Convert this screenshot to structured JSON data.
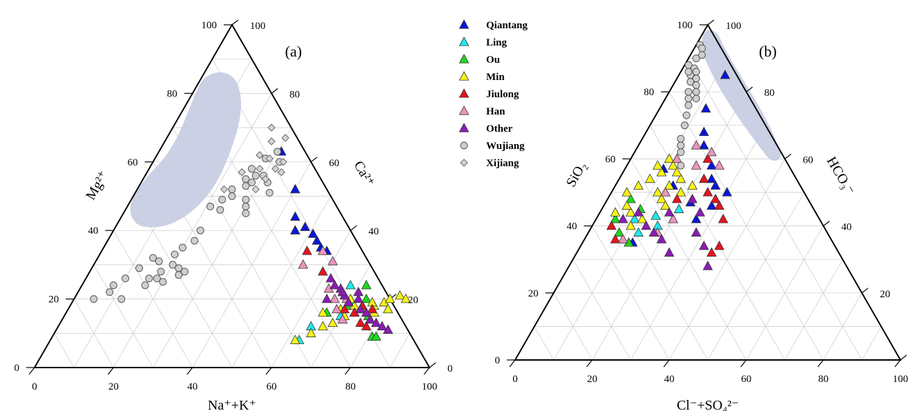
{
  "chart_data": [
    {
      "type": "scatter",
      "subtype": "ternary",
      "panel_label": "(a)",
      "axes": {
        "bottom": {
          "label_html": "Na⁺+K⁺",
          "range": [
            0,
            100
          ]
        },
        "left": {
          "label_html": "Mg²⁺",
          "range": [
            0,
            100
          ]
        },
        "right": {
          "label_html": "Ca²⁺",
          "range": [
            0,
            100
          ]
        }
      },
      "bottom_ticks": [
        "0",
        "20",
        "40",
        "60",
        "80",
        "100"
      ],
      "left_ticks": [
        "0",
        "20",
        "40",
        "60",
        "80",
        "100"
      ],
      "right_ticks": [
        "100",
        "80",
        "60",
        "40",
        "20",
        "0"
      ],
      "grid": true,
      "note": "Point values are approximate positions (percent) estimated from the chart.",
      "series": [
        {
          "name": "Qiantang",
          "points": [
            [
              31,
              63
            ],
            [
              40,
              52
            ],
            [
              44,
              44
            ],
            [
              46,
              40
            ],
            [
              48,
              41
            ],
            [
              51,
              39
            ],
            [
              53,
              37
            ],
            [
              55,
              35
            ],
            [
              57,
              34
            ]
          ]
        },
        {
          "name": "Ling",
          "points": [
            [
              68,
              24
            ],
            [
              67,
              22
            ],
            [
              71,
              19
            ],
            [
              70,
              15
            ],
            [
              64,
              12
            ],
            [
              63,
              8
            ]
          ]
        },
        {
          "name": "Ou",
          "points": [
            [
              72,
              24
            ],
            [
              74,
              20
            ],
            [
              77,
              15
            ],
            [
              81,
              9
            ],
            [
              82,
              9
            ],
            [
              66,
              16
            ],
            [
              70,
              18
            ]
          ]
        },
        {
          "name": "Min",
          "points": [
            [
              62,
              8
            ],
            [
              65,
              10
            ],
            [
              67,
              12
            ],
            [
              69,
              13
            ],
            [
              71,
              15
            ],
            [
              73,
              16
            ],
            [
              75,
              17
            ],
            [
              77,
              18
            ],
            [
              79,
              19
            ],
            [
              80,
              20
            ],
            [
              82,
              21
            ],
            [
              84,
              20
            ],
            [
              65,
              16
            ],
            [
              69,
              17
            ],
            [
              72,
              18
            ],
            [
              76,
              19
            ],
            [
              78,
              16
            ],
            [
              81,
              17
            ],
            [
              70,
              20
            ]
          ]
        },
        {
          "name": "Jiulong",
          "points": [
            [
              52,
              34
            ],
            [
              59,
              28
            ],
            [
              70,
              17
            ],
            [
              73,
              16
            ],
            [
              76,
              13
            ],
            [
              78,
              12
            ],
            [
              74,
              18
            ],
            [
              77,
              17
            ]
          ]
        },
        {
          "name": "Han",
          "points": [
            [
              53,
              30
            ],
            [
              56,
              34
            ],
            [
              60,
              31
            ],
            [
              63,
              23
            ],
            [
              66,
              20
            ],
            [
              68,
              17
            ],
            [
              71,
              14
            ],
            [
              69,
              20
            ]
          ]
        },
        {
          "name": "Other",
          "points": [
            [
              62,
              26
            ],
            [
              64,
              24
            ],
            [
              66,
              23
            ],
            [
              68,
              21
            ],
            [
              70,
              19
            ],
            [
              72,
              20
            ],
            [
              74,
              17
            ],
            [
              76,
              16
            ],
            [
              78,
              14
            ],
            [
              80,
              13
            ],
            [
              82,
              12
            ],
            [
              84,
              11
            ],
            [
              64,
              20
            ],
            [
              67,
              22
            ],
            [
              71,
              22
            ]
          ]
        },
        {
          "name": "Wujiang",
          "points": [
            [
              31,
              45
            ],
            [
              30,
              47
            ],
            [
              29,
              49
            ],
            [
              28,
              54
            ],
            [
              28,
              56
            ],
            [
              30,
              56
            ],
            [
              32,
              54
            ],
            [
              34,
              51
            ],
            [
              26,
              58
            ],
            [
              28,
              61
            ],
            [
              30,
              63
            ],
            [
              32,
              60
            ],
            [
              26,
              55
            ],
            [
              24,
              46
            ],
            [
              22,
              40
            ],
            [
              22,
              37
            ],
            [
              20,
              35
            ],
            [
              19,
              33
            ],
            [
              20,
              30
            ],
            [
              18,
              28
            ],
            [
              16,
              26
            ],
            [
              16,
              24
            ],
            [
              12,
              29
            ],
            [
              10,
              26
            ],
            [
              12,
              20
            ],
            [
              8,
              22
            ],
            [
              8,
              24
            ],
            [
              5,
              20
            ],
            [
              24,
              52
            ],
            [
              25,
              50
            ],
            [
              27,
              53
            ],
            [
              23,
              49
            ],
            [
              21,
              47
            ],
            [
              14,
              32
            ],
            [
              16,
              31
            ],
            [
              18,
              26
            ],
            [
              20,
              25
            ],
            [
              22,
              29
            ],
            [
              24,
              28
            ],
            [
              23,
              27
            ]
          ]
        },
        {
          "name": "Xijiang",
          "points": [
            [
              25,
              70
            ],
            [
              27,
              66
            ],
            [
              30,
              67
            ],
            [
              32,
              58
            ],
            [
              34,
              57
            ],
            [
              29,
              61
            ],
            [
              26,
              62
            ],
            [
              28,
              58
            ],
            [
              30,
              52
            ],
            [
              31,
              55
            ],
            [
              33,
              60
            ],
            [
              24,
              57
            ],
            [
              22,
              52
            ]
          ]
        }
      ]
    },
    {
      "type": "scatter",
      "subtype": "ternary",
      "panel_label": "(b)",
      "axes": {
        "bottom": {
          "label_html": "Cl⁻+SO₄²⁻",
          "range": [
            0,
            100
          ]
        },
        "left": {
          "label_html": "SiO₂",
          "range": [
            0,
            100
          ]
        },
        "right": {
          "label_html": "HCO₃⁻",
          "range": [
            0,
            100
          ]
        }
      },
      "bottom_ticks": [
        "0",
        "20",
        "40",
        "60",
        "80",
        "100"
      ],
      "left_ticks": [
        "0",
        "20",
        "40",
        "60",
        "80",
        "100"
      ],
      "right_ticks": [
        "100",
        "80",
        "60",
        "40",
        "20",
        "0"
      ],
      "right_end_label": "0",
      "grid": true,
      "note": "Point values are approximate positions (percent) estimated from the chart.",
      "series": [
        {
          "name": "Qiantang",
          "points": [
            [
              12,
              75
            ],
            [
              12,
              85
            ],
            [
              15,
              68
            ],
            [
              17,
              64
            ],
            [
              20,
              60
            ],
            [
              22,
              58
            ],
            [
              24,
              54
            ],
            [
              26,
              52
            ],
            [
              30,
              50
            ],
            [
              28,
              46
            ],
            [
              26,
              42
            ],
            [
              22,
              47
            ],
            [
              15,
              52
            ],
            [
              13,
              35
            ],
            [
              10,
              57
            ]
          ]
        },
        {
          "name": "Ling",
          "points": [
            [
              20,
              45
            ],
            [
              17,
              40
            ],
            [
              13,
              38
            ],
            [
              10,
              42
            ],
            [
              15,
              43
            ]
          ]
        },
        {
          "name": "Ou",
          "points": [
            [
              5,
              42
            ],
            [
              8,
              38
            ],
            [
              12,
              35
            ],
            [
              10,
              45
            ],
            [
              6,
              48
            ]
          ]
        },
        {
          "name": "Min",
          "points": [
            [
              4,
              50
            ],
            [
              6,
              52
            ],
            [
              8,
              54
            ],
            [
              10,
              56
            ],
            [
              12,
              50
            ],
            [
              14,
              48
            ],
            [
              16,
              46
            ],
            [
              8,
              44
            ],
            [
              10,
              40
            ],
            [
              12,
              42
            ],
            [
              6,
              46
            ],
            [
              4,
              44
            ],
            [
              14,
              52
            ],
            [
              16,
              54
            ],
            [
              18,
              50
            ],
            [
              20,
              52
            ],
            [
              8,
              58
            ],
            [
              10,
              60
            ],
            [
              12,
              58
            ],
            [
              14,
              56
            ]
          ]
        },
        {
          "name": "Jiulong",
          "points": [
            [
              5,
              40
            ],
            [
              8,
              36
            ],
            [
              20,
              60
            ],
            [
              25,
              50
            ],
            [
              28,
              48
            ],
            [
              33,
              42
            ],
            [
              36,
              34
            ],
            [
              35,
              32
            ],
            [
              30,
              46
            ],
            [
              18,
              48
            ],
            [
              22,
              54
            ]
          ]
        },
        {
          "name": "Han",
          "points": [
            [
              18,
              58
            ],
            [
              20,
              62
            ],
            [
              15,
              64
            ],
            [
              12,
              60
            ],
            [
              14,
              50
            ],
            [
              18,
              38
            ],
            [
              20,
              42
            ],
            [
              10,
              36
            ],
            [
              24,
              58
            ]
          ]
        },
        {
          "name": "Other",
          "points": [
            [
              7,
              42
            ],
            [
              10,
              44
            ],
            [
              14,
              40
            ],
            [
              17,
              38
            ],
            [
              20,
              36
            ],
            [
              24,
              32
            ],
            [
              28,
              38
            ],
            [
              32,
              34
            ],
            [
              36,
              28
            ],
            [
              26,
              44
            ],
            [
              22,
              48
            ],
            [
              18,
              44
            ]
          ]
        },
        {
          "name": "Wujiang",
          "points": [
            [
              1,
              94
            ],
            [
              2,
              90
            ],
            [
              3,
              87
            ],
            [
              3,
              85
            ],
            [
              4,
              83
            ],
            [
              5,
              80
            ],
            [
              6,
              78
            ],
            [
              7,
              76
            ],
            [
              8,
              73
            ],
            [
              9,
              70
            ],
            [
              10,
              66
            ],
            [
              11,
              64
            ],
            [
              12,
              62
            ],
            [
              14,
              58
            ],
            [
              1,
              88
            ],
            [
              2,
              86
            ],
            [
              4,
              86
            ],
            [
              5,
              84
            ],
            [
              6,
              82
            ],
            [
              7,
              80
            ],
            [
              8,
              78
            ],
            [
              3,
              91
            ],
            [
              2,
              93
            ]
          ]
        }
      ]
    }
  ],
  "legend": {
    "items": [
      {
        "name": "Qiantang",
        "marker": "triangle",
        "color": "#0a16d8"
      },
      {
        "name": "Ling",
        "marker": "triangle",
        "color": "#21e8ef"
      },
      {
        "name": "Ou",
        "marker": "triangle",
        "color": "#1ed81e"
      },
      {
        "name": "Min",
        "marker": "triangle",
        "color": "#f5f218"
      },
      {
        "name": "Jiulong",
        "marker": "triangle",
        "color": "#e4141f"
      },
      {
        "name": "Han",
        "marker": "triangle",
        "color": "#ec94bd"
      },
      {
        "name": "Other",
        "marker": "triangle",
        "color": "#8c1bb4"
      },
      {
        "name": "Wujiang",
        "marker": "circle",
        "color": "#cfcfcf"
      },
      {
        "name": "Xijiang",
        "marker": "diamond",
        "color": "#d6d6d6"
      }
    ]
  },
  "field_color": "#c5cbe1"
}
